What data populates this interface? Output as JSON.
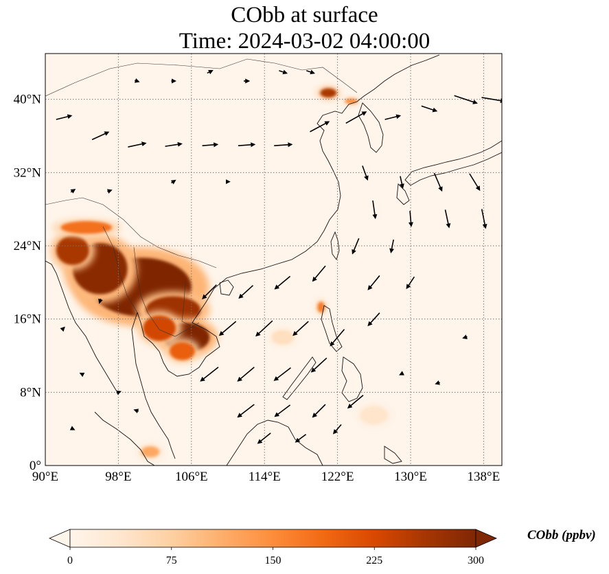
{
  "title": {
    "line1": "CObb at surface",
    "line2": "Time: 2024-03-02 04:00:00"
  },
  "map": {
    "projection": "PlateCarree",
    "lon_range": [
      90,
      140
    ],
    "lat_range": [
      0,
      45
    ],
    "x_ticks": [
      {
        "value": 90,
        "label": "90°E"
      },
      {
        "value": 98,
        "label": "98°E"
      },
      {
        "value": 106,
        "label": "106°E"
      },
      {
        "value": 114,
        "label": "114°E"
      },
      {
        "value": 122,
        "label": "122°E"
      },
      {
        "value": 130,
        "label": "130°E"
      },
      {
        "value": 138,
        "label": "138°E"
      }
    ],
    "y_ticks": [
      {
        "value": 0,
        "label": "0°"
      },
      {
        "value": 8,
        "label": "8°N"
      },
      {
        "value": 16,
        "label": "16°N"
      },
      {
        "value": 24,
        "label": "24°N"
      },
      {
        "value": 32,
        "label": "32°N"
      },
      {
        "value": 40,
        "label": "40°N"
      }
    ],
    "grid": "dotted",
    "plume_regions": [
      {
        "lon": 100.5,
        "lat": 19.5,
        "rlon": 5.5,
        "rlat": 3.2,
        "value": 300
      },
      {
        "lon": 96.0,
        "lat": 21.5,
        "rlon": 3.0,
        "rlat": 2.8,
        "value": 290
      },
      {
        "lon": 93.0,
        "lat": 23.5,
        "rlon": 1.8,
        "rlat": 1.6,
        "value": 260
      },
      {
        "lon": 94.5,
        "lat": 26.0,
        "rlon": 2.8,
        "rlat": 0.7,
        "value": 180
      },
      {
        "lon": 104.0,
        "lat": 17.0,
        "rlon": 3.0,
        "rlat": 1.5,
        "value": 270
      },
      {
        "lon": 105.5,
        "lat": 14.0,
        "rlon": 2.5,
        "rlat": 1.6,
        "value": 300
      },
      {
        "lon": 102.5,
        "lat": 15.0,
        "rlon": 1.8,
        "rlat": 1.4,
        "value": 230
      },
      {
        "lon": 105.0,
        "lat": 12.5,
        "rlon": 1.4,
        "rlat": 1.0,
        "value": 200
      },
      {
        "lon": 121.0,
        "lat": 40.7,
        "rlon": 0.9,
        "rlat": 0.5,
        "value": 260
      },
      {
        "lon": 123.5,
        "lat": 39.8,
        "rlon": 0.7,
        "rlat": 0.3,
        "value": 150
      },
      {
        "lon": 120.2,
        "lat": 17.3,
        "rlon": 0.4,
        "rlat": 0.6,
        "value": 170
      },
      {
        "lon": 101.5,
        "lat": 1.5,
        "rlon": 1.0,
        "rlat": 0.6,
        "value": 120
      },
      {
        "lon": 116.0,
        "lat": 14.0,
        "rlon": 1.2,
        "rlat": 0.8,
        "value": 50
      },
      {
        "lon": 126.0,
        "lat": 5.5,
        "rlon": 1.5,
        "rlat": 1.0,
        "value": 40
      }
    ],
    "wind_vectors": [
      [
        92,
        38,
        1.2,
        0.3
      ],
      [
        96,
        36,
        1.3,
        0.6
      ],
      [
        100,
        35,
        1.4,
        0.3
      ],
      [
        104,
        35,
        1.3,
        0.2
      ],
      [
        108,
        35,
        1.2,
        0.1
      ],
      [
        112,
        35,
        1.3,
        0.1
      ],
      [
        116,
        35,
        1.4,
        0.1
      ],
      [
        120,
        37,
        1.5,
        0.8
      ],
      [
        124,
        38,
        1.6,
        0.9
      ],
      [
        128,
        38,
        1.2,
        0.3
      ],
      [
        132,
        39,
        1.2,
        -0.4
      ],
      [
        136,
        40,
        1.8,
        -0.6
      ],
      [
        139,
        40,
        1.8,
        -0.3
      ],
      [
        93,
        30,
        0.3,
        0.2
      ],
      [
        97,
        30,
        0.3,
        0.1
      ],
      [
        104,
        31,
        0.3,
        0.2
      ],
      [
        110,
        31,
        0.2,
        0.0
      ],
      [
        125,
        32,
        0.4,
        -1.1
      ],
      [
        129,
        31,
        0.2,
        -0.9
      ],
      [
        133,
        31,
        0.6,
        -1.4
      ],
      [
        137,
        31,
        0.8,
        -1.3
      ],
      [
        126,
        28,
        0.2,
        -1.4
      ],
      [
        130,
        27,
        0.1,
        -1.2
      ],
      [
        134,
        27,
        0.3,
        -1.4
      ],
      [
        138,
        27,
        0.3,
        -1.5
      ],
      [
        124,
        24,
        -0.5,
        -1.2
      ],
      [
        128,
        24,
        -0.2,
        -1.0
      ],
      [
        108,
        19,
        -1.1,
        -1.1
      ],
      [
        112,
        19,
        -1.1,
        -1.0
      ],
      [
        116,
        20,
        -1.2,
        -1.0
      ],
      [
        120,
        21,
        -1.0,
        -1.2
      ],
      [
        110,
        15,
        -1.3,
        -1.1
      ],
      [
        114,
        15,
        -1.3,
        -1.2
      ],
      [
        118,
        15,
        -1.2,
        -1.1
      ],
      [
        122,
        14,
        -1.1,
        -1.3
      ],
      [
        108,
        10,
        -1.4,
        -1.1
      ],
      [
        112,
        10,
        -1.3,
        -1.1
      ],
      [
        116,
        10,
        -1.3,
        -1.0
      ],
      [
        120,
        11,
        -1.2,
        -1.1
      ],
      [
        112,
        6,
        -1.3,
        -1.0
      ],
      [
        116,
        6,
        -1.2,
        -0.9
      ],
      [
        120,
        6,
        -1.0,
        -1.0
      ],
      [
        124,
        7,
        -1.2,
        -1.0
      ],
      [
        114,
        3,
        -1.0,
        -0.8
      ],
      [
        118,
        3,
        -0.8,
        -0.6
      ],
      [
        122,
        4,
        -0.6,
        -0.7
      ],
      [
        126,
        20,
        -0.9,
        -1.1
      ],
      [
        126,
        16,
        -0.9,
        -1.0
      ],
      [
        130,
        20,
        -0.6,
        -0.9
      ],
      [
        94,
        10,
        -0.2,
        0.1
      ],
      [
        98,
        8,
        0.3,
        0.1
      ],
      [
        100,
        6,
        -0.3,
        0.1
      ],
      [
        93,
        4,
        0.2,
        -0.1
      ],
      [
        96,
        18,
        -0.1,
        -0.3
      ],
      [
        92,
        15,
        0.1,
        0.1
      ],
      [
        100,
        42,
        0.3,
        -0.1
      ],
      [
        104,
        42,
        0.3,
        0.0
      ],
      [
        108,
        43,
        0.4,
        0.2
      ],
      [
        112,
        42,
        0.4,
        0.0
      ],
      [
        116,
        43,
        0.6,
        -0.2
      ],
      [
        119,
        43,
        0.6,
        -0.2
      ],
      [
        136,
        14,
        -0.3,
        -0.1
      ],
      [
        129,
        10,
        -0.2,
        -0.1
      ],
      [
        133,
        9,
        -0.3,
        -0.1
      ]
    ]
  },
  "colorbar": {
    "label": "CObb (ppbv)",
    "min": 0,
    "max": 300,
    "extend": "both",
    "ticks": [
      "0",
      "75",
      "150",
      "225",
      "300"
    ],
    "cmap_stops": [
      "#fff5eb",
      "#fee6ce",
      "#fdd0a2",
      "#fdae6b",
      "#fd8d3c",
      "#f16913",
      "#d94801",
      "#a63603",
      "#7f2704"
    ]
  }
}
